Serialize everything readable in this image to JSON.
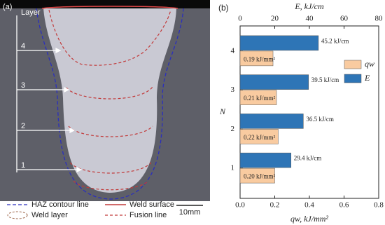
{
  "figure_a": {
    "panel_label": "(a)",
    "axis_label": "Layer",
    "layers": [
      "4",
      "3",
      "2",
      "1"
    ],
    "legend": [
      "HAZ contour line",
      "Weld layer",
      "Weld surface",
      "Fusion line"
    ],
    "scale_bar": "10mm"
  },
  "chart_data": {
    "type": "bar",
    "orientation": "horizontal",
    "panel_label": "(b)",
    "ylabel": "N",
    "xlabel": "qw, kJ/mm²",
    "x2label": "E, kJ/cm",
    "categories": [
      "1",
      "2",
      "3",
      "4"
    ],
    "series": [
      {
        "name": "qw",
        "color": "#f9cba0",
        "values": [
          0.2,
          0.22,
          0.21,
          0.19
        ],
        "value_labels": [
          "0.20 kJ/mm²",
          "0.22 kJ/mm²",
          "0.21 kJ/mm²",
          "0.19 kJ/mm²"
        ]
      },
      {
        "name": "E",
        "color": "#2e75b6",
        "axis": "x2",
        "values": [
          29.4,
          36.5,
          39.5,
          45.2
        ],
        "value_labels": [
          "29.4 kJ/cm",
          "36.5 kJ/cm",
          "39.5 kJ/cm",
          "45.2 kJ/cm"
        ]
      }
    ],
    "xlim": [
      0,
      0.8
    ],
    "xticks": [
      {
        "value": 0,
        "label": "0.0"
      },
      0.2,
      0.4,
      0.6,
      0.8
    ],
    "x2lim": [
      0,
      80
    ],
    "x2ticks": [
      0,
      20,
      40,
      60,
      80
    ],
    "legend": "right"
  }
}
